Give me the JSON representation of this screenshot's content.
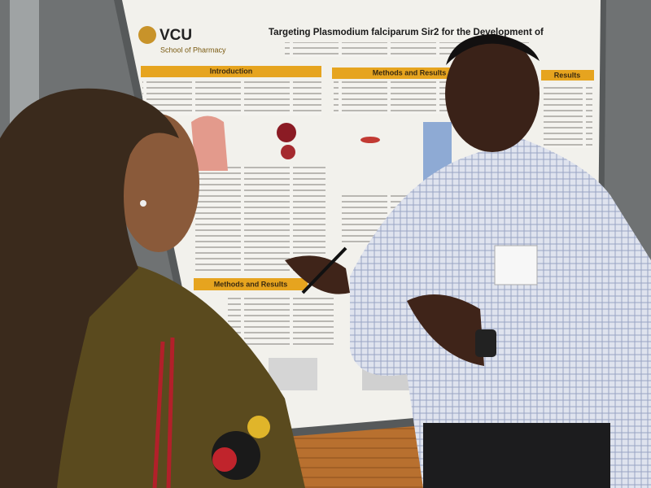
{
  "poster": {
    "logo": "VCU",
    "school": "School of Pharmacy",
    "title": "Targeting Plasmodium falciparum Sir2 for the Development of",
    "sections": [
      "Introduction",
      "Methods and Results",
      "Methods and Results",
      "Results"
    ]
  }
}
